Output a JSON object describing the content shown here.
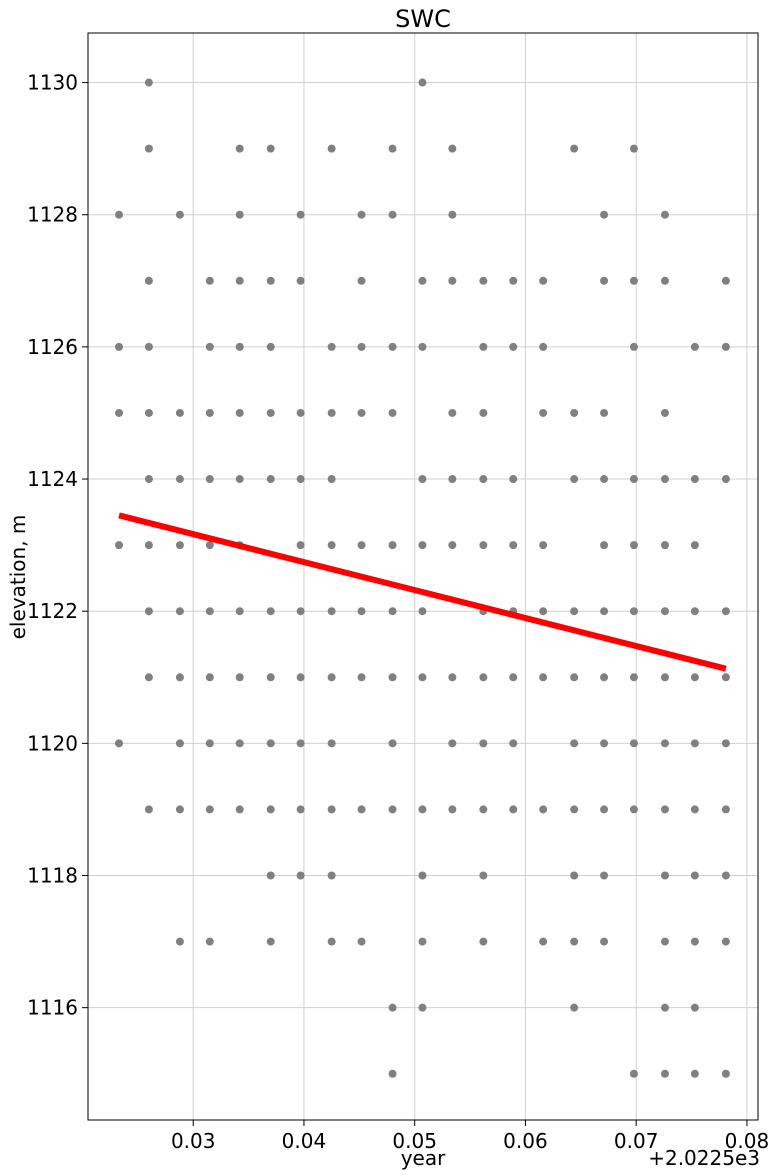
{
  "chart_data": {
    "type": "scatter",
    "title": "SWC",
    "xlabel": "year",
    "ylabel": "elevation, m",
    "x_offset_label": "+2.0225e3",
    "xlim": [
      0.0205,
      0.081
    ],
    "ylim": [
      1114.3,
      1130.75
    ],
    "grid": true,
    "xticks": [
      0.03,
      0.04,
      0.05,
      0.06,
      0.07,
      0.08
    ],
    "xtick_labels": [
      "0.03",
      "0.04",
      "0.05",
      "0.06",
      "0.07",
      "0.08"
    ],
    "yticks": [
      1116,
      1118,
      1120,
      1122,
      1124,
      1126,
      1128,
      1130
    ],
    "ytick_labels": [
      "1116",
      "1118",
      "1120",
      "1122",
      "1124",
      "1126",
      "1128",
      "1130"
    ],
    "point_color": "#808080",
    "trend_color": "#ff0000",
    "points": [
      [
        0.0233,
        1128
      ],
      [
        0.0233,
        1126
      ],
      [
        0.0233,
        1125
      ],
      [
        0.0233,
        1123
      ],
      [
        0.0233,
        1120
      ],
      [
        0.026,
        1130
      ],
      [
        0.026,
        1129
      ],
      [
        0.026,
        1127
      ],
      [
        0.026,
        1126
      ],
      [
        0.026,
        1125
      ],
      [
        0.026,
        1124
      ],
      [
        0.026,
        1123
      ],
      [
        0.026,
        1122
      ],
      [
        0.026,
        1121
      ],
      [
        0.026,
        1119
      ],
      [
        0.0288,
        1128
      ],
      [
        0.0288,
        1125
      ],
      [
        0.0288,
        1124
      ],
      [
        0.0288,
        1123
      ],
      [
        0.0288,
        1122
      ],
      [
        0.0288,
        1121
      ],
      [
        0.0288,
        1120
      ],
      [
        0.0288,
        1119
      ],
      [
        0.0288,
        1117
      ],
      [
        0.0315,
        1127
      ],
      [
        0.0315,
        1126
      ],
      [
        0.0315,
        1125
      ],
      [
        0.0315,
        1124
      ],
      [
        0.0315,
        1123
      ],
      [
        0.0315,
        1122
      ],
      [
        0.0315,
        1121
      ],
      [
        0.0315,
        1120
      ],
      [
        0.0315,
        1119
      ],
      [
        0.0315,
        1117
      ],
      [
        0.0342,
        1129
      ],
      [
        0.0342,
        1128
      ],
      [
        0.0342,
        1127
      ],
      [
        0.0342,
        1126
      ],
      [
        0.0342,
        1125
      ],
      [
        0.0342,
        1124
      ],
      [
        0.0342,
        1123
      ],
      [
        0.0342,
        1122
      ],
      [
        0.0342,
        1121
      ],
      [
        0.0342,
        1120
      ],
      [
        0.0342,
        1119
      ],
      [
        0.037,
        1129
      ],
      [
        0.037,
        1127
      ],
      [
        0.037,
        1126
      ],
      [
        0.037,
        1125
      ],
      [
        0.037,
        1124
      ],
      [
        0.037,
        1122
      ],
      [
        0.037,
        1121
      ],
      [
        0.037,
        1120
      ],
      [
        0.037,
        1119
      ],
      [
        0.037,
        1118
      ],
      [
        0.037,
        1117
      ],
      [
        0.0397,
        1128
      ],
      [
        0.0397,
        1127
      ],
      [
        0.0397,
        1125
      ],
      [
        0.0397,
        1124
      ],
      [
        0.0397,
        1123
      ],
      [
        0.0397,
        1122
      ],
      [
        0.0397,
        1121
      ],
      [
        0.0397,
        1120
      ],
      [
        0.0397,
        1119
      ],
      [
        0.0397,
        1118
      ],
      [
        0.0425,
        1129
      ],
      [
        0.0425,
        1126
      ],
      [
        0.0425,
        1125
      ],
      [
        0.0425,
        1124
      ],
      [
        0.0425,
        1123
      ],
      [
        0.0425,
        1122
      ],
      [
        0.0425,
        1121
      ],
      [
        0.0425,
        1120
      ],
      [
        0.0425,
        1119
      ],
      [
        0.0425,
        1118
      ],
      [
        0.0425,
        1117
      ],
      [
        0.0452,
        1128
      ],
      [
        0.0452,
        1127
      ],
      [
        0.0452,
        1126
      ],
      [
        0.0452,
        1125
      ],
      [
        0.0452,
        1123
      ],
      [
        0.0452,
        1122
      ],
      [
        0.0452,
        1121
      ],
      [
        0.0452,
        1119
      ],
      [
        0.0452,
        1117
      ],
      [
        0.048,
        1129
      ],
      [
        0.048,
        1128
      ],
      [
        0.048,
        1126
      ],
      [
        0.048,
        1125
      ],
      [
        0.048,
        1123
      ],
      [
        0.048,
        1122
      ],
      [
        0.048,
        1121
      ],
      [
        0.048,
        1120
      ],
      [
        0.048,
        1119
      ],
      [
        0.048,
        1116
      ],
      [
        0.048,
        1115
      ],
      [
        0.0507,
        1130
      ],
      [
        0.0507,
        1127
      ],
      [
        0.0507,
        1126
      ],
      [
        0.0507,
        1124
      ],
      [
        0.0507,
        1123
      ],
      [
        0.0507,
        1122
      ],
      [
        0.0507,
        1121
      ],
      [
        0.0507,
        1119
      ],
      [
        0.0507,
        1118
      ],
      [
        0.0507,
        1117
      ],
      [
        0.0507,
        1116
      ],
      [
        0.0534,
        1129
      ],
      [
        0.0534,
        1128
      ],
      [
        0.0534,
        1127
      ],
      [
        0.0534,
        1125
      ],
      [
        0.0534,
        1124
      ],
      [
        0.0534,
        1123
      ],
      [
        0.0534,
        1121
      ],
      [
        0.0534,
        1120
      ],
      [
        0.0534,
        1119
      ],
      [
        0.0562,
        1127
      ],
      [
        0.0562,
        1126
      ],
      [
        0.0562,
        1125
      ],
      [
        0.0562,
        1124
      ],
      [
        0.0562,
        1123
      ],
      [
        0.0562,
        1122
      ],
      [
        0.0562,
        1121
      ],
      [
        0.0562,
        1120
      ],
      [
        0.0562,
        1119
      ],
      [
        0.0562,
        1118
      ],
      [
        0.0562,
        1117
      ],
      [
        0.0589,
        1127
      ],
      [
        0.0589,
        1126
      ],
      [
        0.0589,
        1124
      ],
      [
        0.0589,
        1123
      ],
      [
        0.0589,
        1122
      ],
      [
        0.0589,
        1121
      ],
      [
        0.0589,
        1120
      ],
      [
        0.0589,
        1119
      ],
      [
        0.0616,
        1127
      ],
      [
        0.0616,
        1126
      ],
      [
        0.0616,
        1125
      ],
      [
        0.0616,
        1123
      ],
      [
        0.0616,
        1122
      ],
      [
        0.0616,
        1121
      ],
      [
        0.0616,
        1119
      ],
      [
        0.0616,
        1117
      ],
      [
        0.0644,
        1129
      ],
      [
        0.0644,
        1125
      ],
      [
        0.0644,
        1124
      ],
      [
        0.0644,
        1122
      ],
      [
        0.0644,
        1121
      ],
      [
        0.0644,
        1120
      ],
      [
        0.0644,
        1119
      ],
      [
        0.0644,
        1118
      ],
      [
        0.0644,
        1117
      ],
      [
        0.0644,
        1116
      ],
      [
        0.0671,
        1128
      ],
      [
        0.0671,
        1127
      ],
      [
        0.0671,
        1125
      ],
      [
        0.0671,
        1124
      ],
      [
        0.0671,
        1123
      ],
      [
        0.0671,
        1122
      ],
      [
        0.0671,
        1121
      ],
      [
        0.0671,
        1120
      ],
      [
        0.0671,
        1119
      ],
      [
        0.0671,
        1118
      ],
      [
        0.0671,
        1117
      ],
      [
        0.0698,
        1129
      ],
      [
        0.0698,
        1127
      ],
      [
        0.0698,
        1126
      ],
      [
        0.0698,
        1124
      ],
      [
        0.0698,
        1123
      ],
      [
        0.0698,
        1122
      ],
      [
        0.0698,
        1121
      ],
      [
        0.0698,
        1120
      ],
      [
        0.0698,
        1119
      ],
      [
        0.0698,
        1115
      ],
      [
        0.0726,
        1128
      ],
      [
        0.0726,
        1127
      ],
      [
        0.0726,
        1125
      ],
      [
        0.0726,
        1124
      ],
      [
        0.0726,
        1123
      ],
      [
        0.0726,
        1122
      ],
      [
        0.0726,
        1121
      ],
      [
        0.0726,
        1120
      ],
      [
        0.0726,
        1119
      ],
      [
        0.0726,
        1118
      ],
      [
        0.0726,
        1117
      ],
      [
        0.0726,
        1116
      ],
      [
        0.0726,
        1115
      ],
      [
        0.0753,
        1126
      ],
      [
        0.0753,
        1124
      ],
      [
        0.0753,
        1123
      ],
      [
        0.0753,
        1122
      ],
      [
        0.0753,
        1121
      ],
      [
        0.0753,
        1120
      ],
      [
        0.0753,
        1119
      ],
      [
        0.0753,
        1118
      ],
      [
        0.0753,
        1117
      ],
      [
        0.0753,
        1116
      ],
      [
        0.0753,
        1115
      ],
      [
        0.0781,
        1127
      ],
      [
        0.0781,
        1126
      ],
      [
        0.0781,
        1124
      ],
      [
        0.0781,
        1122
      ],
      [
        0.0781,
        1121
      ],
      [
        0.0781,
        1120
      ],
      [
        0.0781,
        1119
      ],
      [
        0.0781,
        1118
      ],
      [
        0.0781,
        1117
      ],
      [
        0.0781,
        1115
      ]
    ],
    "trend_line": {
      "x": [
        0.0233,
        0.0781
      ],
      "y": [
        1123.45,
        1121.13
      ]
    }
  }
}
